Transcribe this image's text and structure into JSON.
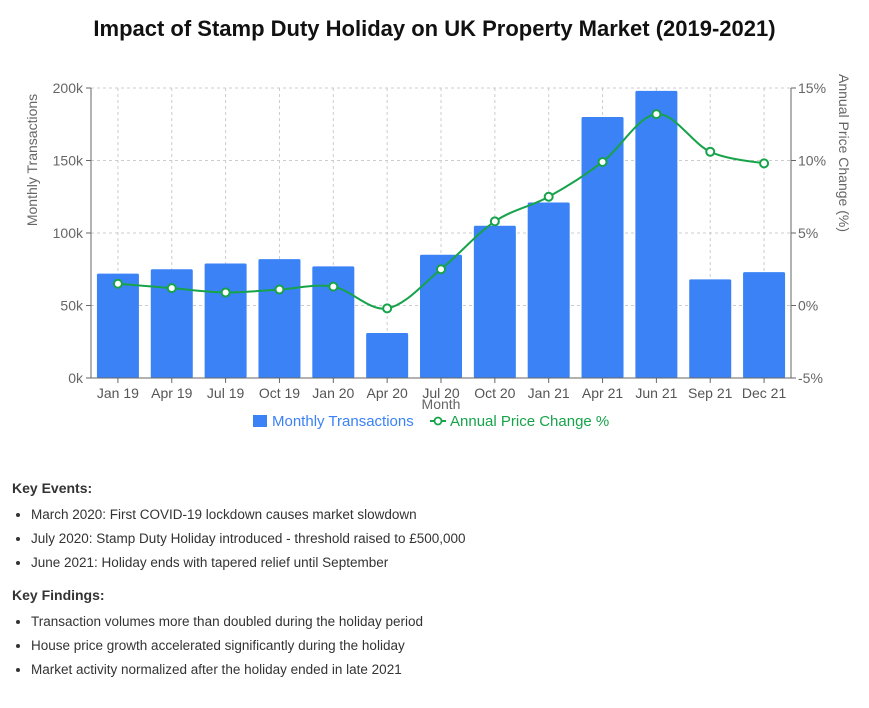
{
  "title": "Impact of Stamp Duty Holiday on UK Property Market (2019-2021)",
  "chart_data": {
    "type": "bar+line",
    "categories": [
      "Jan 19",
      "Apr 19",
      "Jul 19",
      "Oct 19",
      "Jan 20",
      "Apr 20",
      "Jul 20",
      "Oct 20",
      "Jan 21",
      "Apr 21",
      "Jun 21",
      "Sep 21",
      "Dec 21"
    ],
    "series": [
      {
        "name": "Monthly Transactions",
        "type": "bar",
        "axis": "left",
        "color": "#3b82f6",
        "values": [
          72000,
          75000,
          79000,
          82000,
          77000,
          31000,
          85000,
          105000,
          121000,
          180000,
          198000,
          68000,
          73000
        ]
      },
      {
        "name": "Annual Price Change %",
        "type": "line",
        "axis": "right",
        "color": "#16a34a",
        "values": [
          1.5,
          1.2,
          0.9,
          1.1,
          1.3,
          -0.2,
          2.5,
          5.8,
          7.5,
          9.9,
          13.2,
          10.6,
          9.8
        ]
      }
    ],
    "xlabel": "Month",
    "ylabel_left": "Monthly Transactions",
    "ylabel_right": "Annual Price Change (%)",
    "ylim_left": [
      0,
      200000
    ],
    "yticks_left": [
      "0k",
      "50k",
      "100k",
      "150k",
      "200k"
    ],
    "ylim_right": [
      -5,
      15
    ],
    "yticks_right": [
      "-5%",
      "0%",
      "5%",
      "10%",
      "15%"
    ],
    "grid": true,
    "legend_position": "bottom"
  },
  "key_events": {
    "heading": "Key Events:",
    "items": [
      "March 2020: First COVID-19 lockdown causes market slowdown",
      "July 2020: Stamp Duty Holiday introduced - threshold raised to £500,000",
      "June 2021: Holiday ends with tapered relief until September"
    ]
  },
  "key_findings": {
    "heading": "Key Findings:",
    "items": [
      "Transaction volumes more than doubled during the holiday period",
      "House price growth accelerated significantly during the holiday",
      "Market activity normalized after the holiday ended in late 2021"
    ]
  }
}
